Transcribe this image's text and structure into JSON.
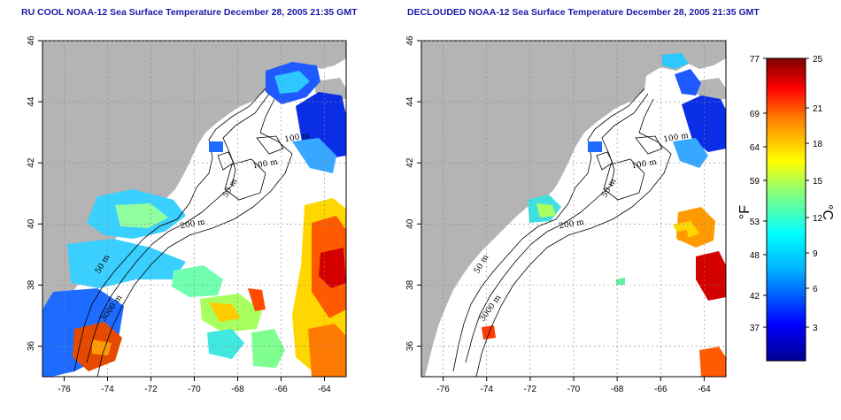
{
  "panels": [
    {
      "title": "RU COOL NOAA-12 Sea Surface Temperature December 28, 2005 21:35 GMT"
    },
    {
      "title": "DECLOUDED NOAA-12 Sea Surface Temperature December 28, 2005 21:35 GMT"
    }
  ],
  "map": {
    "lon_ticks": [
      "-76",
      "-74",
      "-72",
      "-70",
      "-68",
      "-66",
      "-64"
    ],
    "lat_ticks": [
      "36",
      "38",
      "40",
      "42",
      "44",
      "46"
    ],
    "contour_labels": [
      "100 m",
      "100 m",
      "50 m",
      "200 m",
      "50 m",
      "3000 m"
    ],
    "colors": {
      "land": "#b4b4b4",
      "ocean": "#ffffff",
      "contour": "#000000"
    }
  },
  "colorbar": {
    "f_ticks": [
      "77",
      "69",
      "64",
      "59",
      "53",
      "48",
      "42",
      "37"
    ],
    "c_ticks": [
      "25",
      "21",
      "18",
      "15",
      "12",
      "9",
      "6",
      "3"
    ],
    "f_label": "°F",
    "c_label": "°C"
  }
}
